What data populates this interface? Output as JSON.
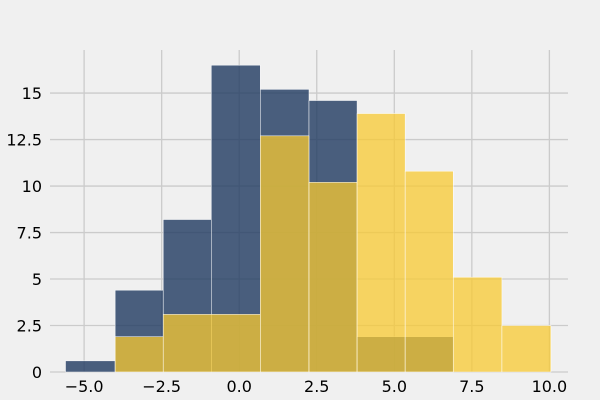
{
  "chart_data": {
    "type": "bar",
    "title": "",
    "xlabel": "",
    "ylabel": "",
    "xlim": [
      -6.1,
      10.6
    ],
    "ylim": [
      0,
      18.5
    ],
    "grid": true,
    "legend": "none",
    "x_ticks": [
      {
        "value": -5.0,
        "label": "−5.0"
      },
      {
        "value": -2.5,
        "label": "−2.5"
      },
      {
        "value": 0.0,
        "label": "0.0"
      },
      {
        "value": 2.5,
        "label": "2.5"
      },
      {
        "value": 5.0,
        "label": "5.0"
      },
      {
        "value": 7.5,
        "label": "7.5"
      },
      {
        "value": 10.0,
        "label": "10.0"
      }
    ],
    "y_ticks": [
      {
        "value": 0,
        "label": "0"
      },
      {
        "value": 2.5,
        "label": "2.5"
      },
      {
        "value": 5,
        "label": "5"
      },
      {
        "value": 7.5,
        "label": "7.5"
      },
      {
        "value": 10,
        "label": "10"
      },
      {
        "value": 12.5,
        "label": "12.5"
      },
      {
        "value": 15,
        "label": "15"
      }
    ],
    "series": [
      {
        "color": "#1f3a60",
        "opacity": 0.8,
        "bins": [
          {
            "x0": -5.6,
            "x1": -4.0,
            "value": 0.6
          },
          {
            "x0": -4.0,
            "x1": -2.45,
            "value": 4.4
          },
          {
            "x0": -2.45,
            "x1": -0.9,
            "value": 8.2
          },
          {
            "x0": -0.9,
            "x1": 0.68,
            "value": 16.5
          },
          {
            "x0": 0.68,
            "x1": 2.25,
            "value": 15.2
          },
          {
            "x0": 2.25,
            "x1": 3.8,
            "value": 14.6
          },
          {
            "x0": 3.8,
            "x1": 5.35,
            "value": 1.9
          },
          {
            "x0": 5.35,
            "x1": 6.9,
            "value": 1.9
          }
        ]
      },
      {
        "color": "#f8c931",
        "opacity": 0.75,
        "bins": [
          {
            "x0": -4.0,
            "x1": -2.45,
            "value": 1.9
          },
          {
            "x0": -2.45,
            "x1": 0.68,
            "value": 3.1
          },
          {
            "x0": 0.68,
            "x1": 2.25,
            "value": 12.7
          },
          {
            "x0": 2.25,
            "x1": 3.8,
            "value": 10.2
          },
          {
            "x0": 3.8,
            "x1": 5.35,
            "value": 13.9
          },
          {
            "x0": 5.35,
            "x1": 6.9,
            "value": 10.8
          },
          {
            "x0": 6.9,
            "x1": 8.47,
            "value": 5.1
          },
          {
            "x0": 8.47,
            "x1": 10.05,
            "value": 2.5
          }
        ]
      }
    ]
  }
}
